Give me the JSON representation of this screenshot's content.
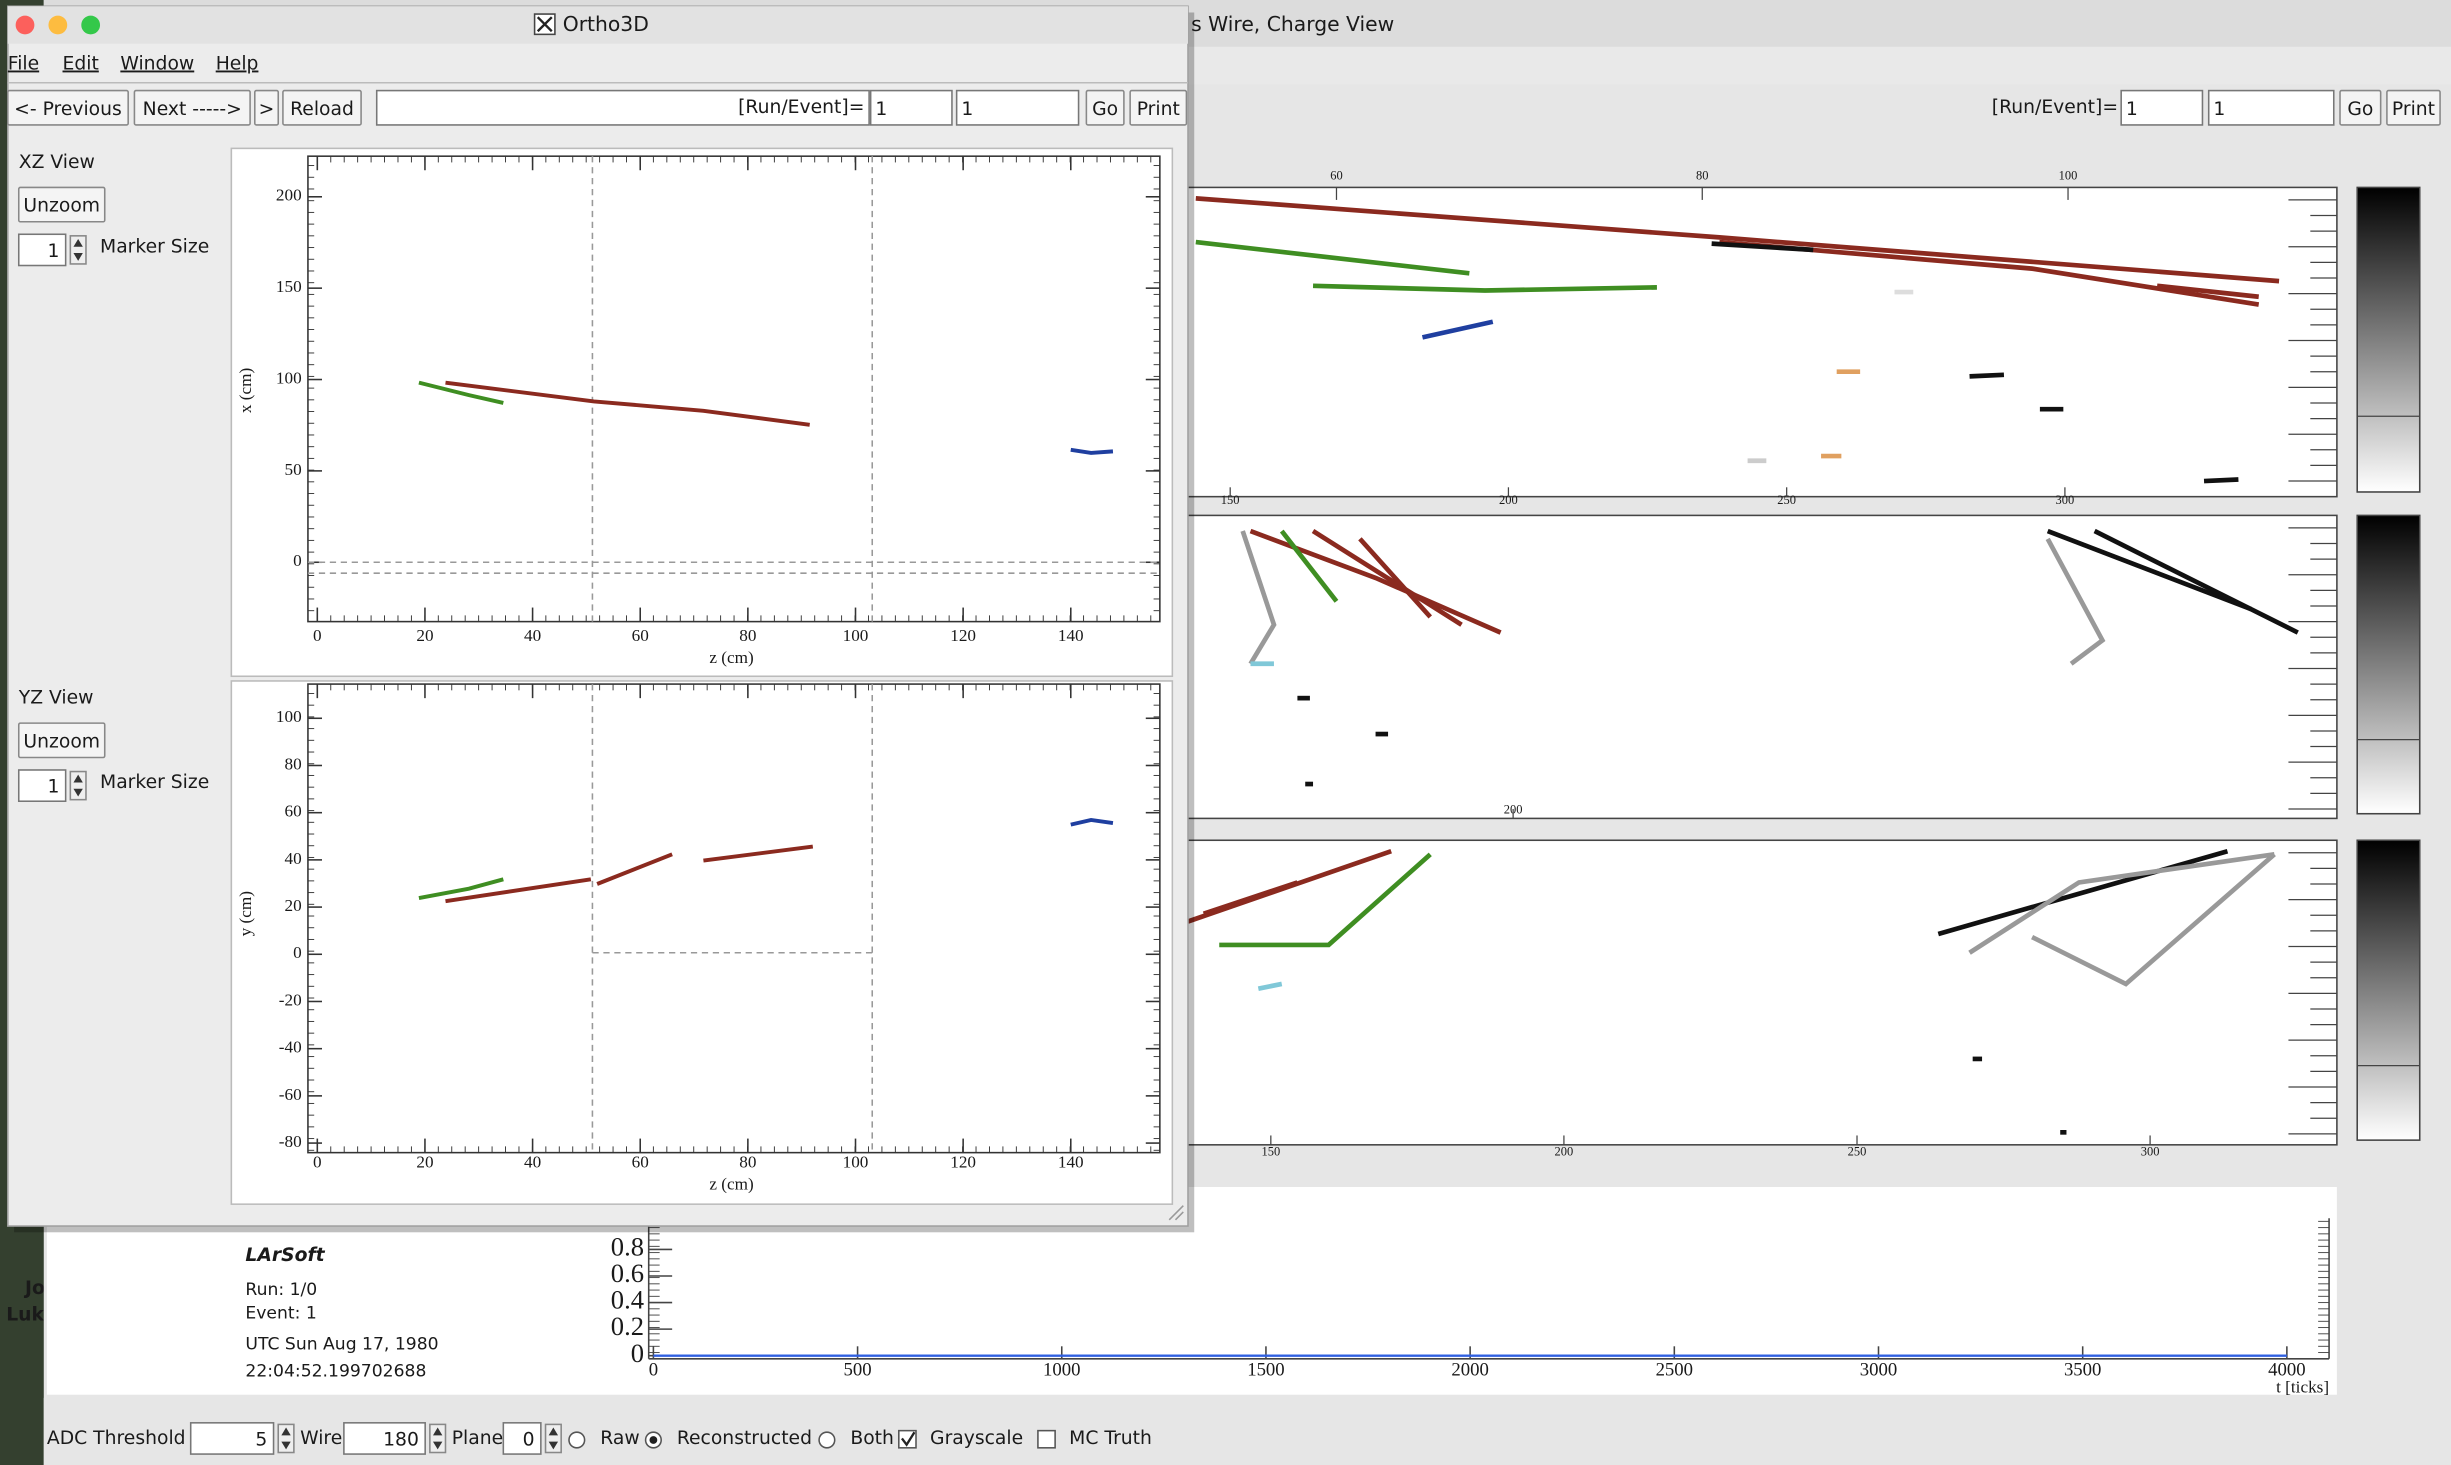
{
  "desktop": {
    "labels": [
      "Jo",
      "Luk"
    ]
  },
  "main_window": {
    "title": "s Wire, Charge View",
    "toolbar": {
      "run_event_label": "[Run/Event]=",
      "run": "1",
      "event": "1",
      "go": "Go",
      "print": "Print"
    },
    "planes": [
      {
        "top_ticks": [
          60,
          80,
          100
        ],
        "bottom_ticks": [
          150,
          200,
          250,
          300
        ]
      },
      {
        "bottom_ticks": [
          200
        ]
      },
      {
        "bottom_ticks": [
          150,
          200,
          250,
          300
        ]
      }
    ],
    "info": {
      "title": "LArSoft",
      "run": "Run:  1/0",
      "event": "Event: 1",
      "date": "UTC Sun Aug 17, 1980",
      "time": "22:04:52.199702688"
    },
    "waveform": {
      "yticks": [
        0,
        0.2,
        0.4,
        0.6,
        0.8
      ],
      "xticks": [
        0,
        500,
        1000,
        1500,
        2000,
        2500,
        3000,
        3500,
        4000
      ],
      "xlabel": "t [ticks]"
    },
    "controls": {
      "adc_threshold_label": "ADC Threshold",
      "adc_threshold": "5",
      "wire_label": "Wire",
      "wire": "180",
      "plane_label": "Plane",
      "plane": "0",
      "raw": "Raw",
      "reconstructed": "Reconstructed",
      "both": "Both",
      "grayscale": "Grayscale",
      "mc_truth": "MC Truth"
    }
  },
  "ortho_window": {
    "title": "Ortho3D",
    "menu": [
      "File",
      "Edit",
      "Window",
      "Help"
    ],
    "toolbar": {
      "previous": "<- Previous",
      "next": "Next ----->",
      "play": ">",
      "reload": "Reload",
      "run_event_label": "[Run/Event]=",
      "run": "1",
      "event": "1",
      "go": "Go",
      "print": "Print"
    },
    "xz": {
      "title": "XZ View",
      "unzoom": "Unzoom",
      "marker_size": "1",
      "marker_size_label": "Marker Size",
      "xticks": [
        0,
        20,
        40,
        60,
        80,
        100,
        120,
        140
      ],
      "xlabel": "z (cm)",
      "yticks": [
        0,
        50,
        100,
        150,
        200
      ],
      "ylabel": "x (cm)"
    },
    "yz": {
      "title": "YZ View",
      "unzoom": "Unzoom",
      "marker_size": "1",
      "marker_size_label": "Marker Size",
      "xticks": [
        0,
        20,
        40,
        60,
        80,
        100,
        120,
        140
      ],
      "xlabel": "z (cm)",
      "yticks": [
        -80,
        -60,
        -40,
        -20,
        0,
        20,
        40,
        60,
        80,
        100
      ],
      "ylabel": "y (cm)"
    }
  }
}
